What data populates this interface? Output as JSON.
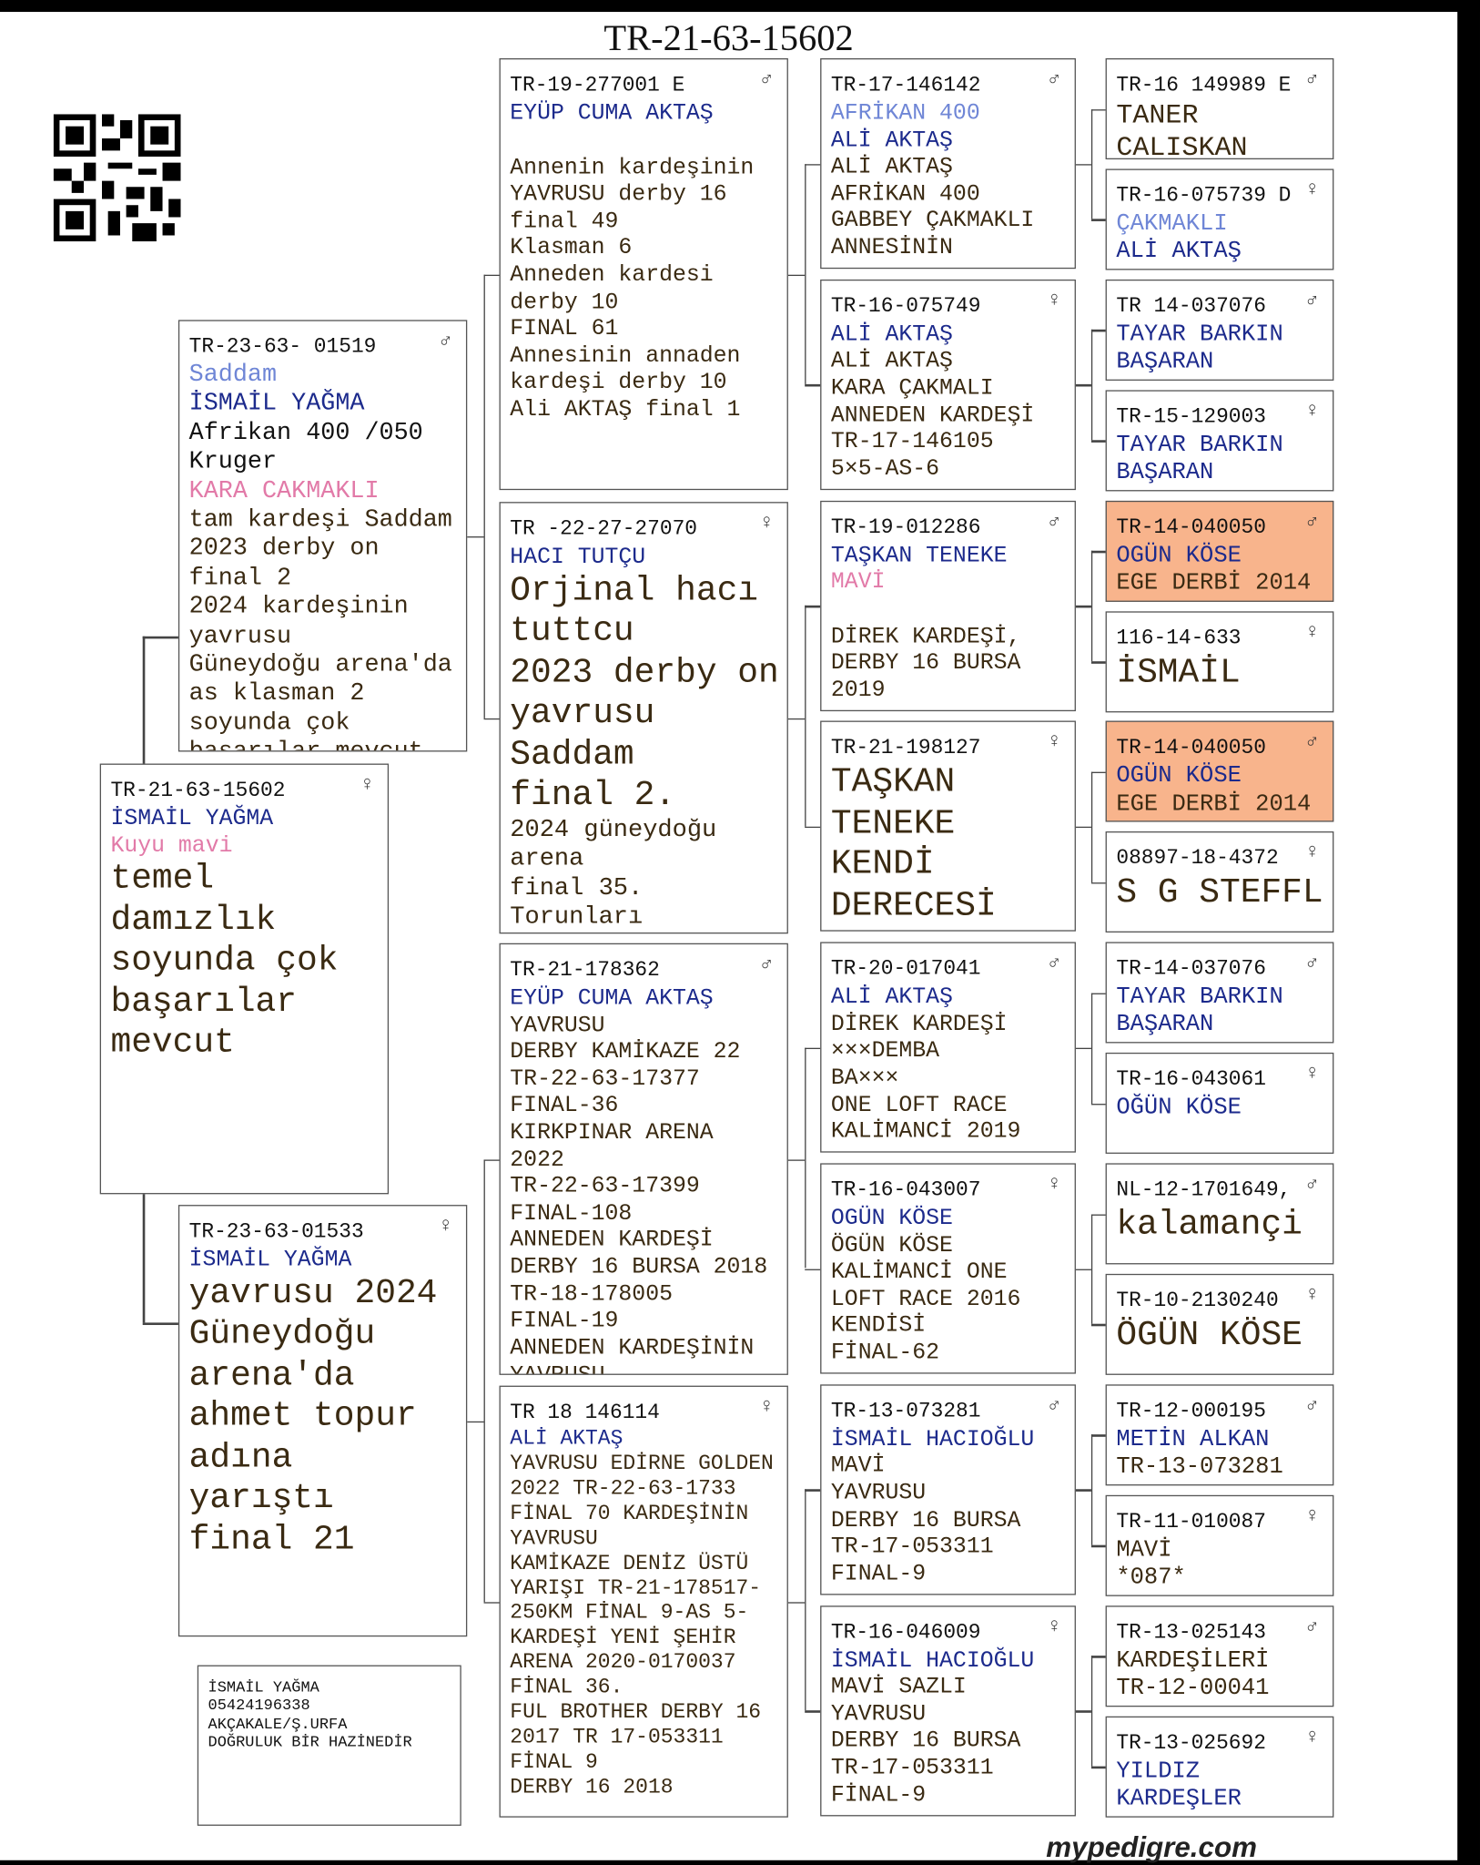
{
  "title": "TR-21-63-15602",
  "subject": {
    "ring": "TR-21-63-15602",
    "sex": "♀",
    "lines": [
      "İSMAİL YAĞMA",
      "Kuyu mavi",
      "temel",
      "damızlık",
      "soyunda çok",
      "başarılar",
      "mevcut"
    ]
  },
  "sire": {
    "ring": "TR-23-63- 01519",
    "sex": "♂",
    "lines": [
      "Saddam",
      "İSMAİL YAĞMA",
      "Afrikan 400 /050",
      "Kruger",
      "KARA CAKMAKLI",
      "tam kardeşi Saddam",
      "2023 derby on",
      "final 2",
      "2024 kardeşinin",
      "yavrusu",
      "Güneydoğu arena'da",
      "as klasman 2",
      "soyunda çok",
      "başarılar mevcut"
    ]
  },
  "dam": {
    "ring": "TR-23-63-01533",
    "sex": "♀",
    "lines": [
      "İSMAİL YAĞMA",
      "yavrusu 2024",
      "Güneydoğu",
      "arena'da",
      "ahmet topur",
      "adına",
      "yarıştı",
      "final 21"
    ]
  },
  "grandparents": [
    {
      "ring": "TR-19-277001 E",
      "sex": "♂",
      "lines": [
        "EYÜP CUMA AKTAŞ",
        "Annenin kardeşinin",
        "YAVRUSU derby 16",
        "final 49",
        "Klasman 6",
        "Anneden kardesi",
        "derby 10",
        "FINAL 61",
        "Annesinin annaden",
        "kardeşi derby 10",
        "Ali AKTAŞ final 1"
      ]
    },
    {
      "ring": "TR -22-27-27070",
      "sex": "♀",
      "lines": [
        "HACI TUTÇU",
        "Orjinal hacı",
        "tuttcu",
        "2023 derby on",
        "yavrusu",
        "Saddam",
        "final 2.",
        "2024 güneydoğu",
        "arena",
        "final 35.",
        "Torunları"
      ]
    },
    {
      "ring": "TR-21-178362",
      "sex": "♂",
      "lines": [
        "EYÜP CUMA AKTAŞ",
        "YAVRUSU",
        "DERBY KAMİKAZE 22",
        "TR-22-63-17377",
        "FINAL-36",
        "KIRKPINAR ARENA",
        "2022",
        "TR-22-63-17399",
        "FINAL-108",
        "ANNEDEN KARDEŞİ",
        "DERBY 16 BURSA 2018",
        "TR-18-178005",
        "FINAL-19",
        "ANNEDEN KARDEŞİNİN",
        "YAVRUSU"
      ]
    },
    {
      "ring": "TR 18 146114",
      "sex": "♀",
      "lines": [
        "ALİ AKTAŞ",
        "YAVRUSU EDİRNE GOLDEN",
        "2022 TR-22-63-1733",
        "FİNAL 70 KARDEŞİNİN",
        "YAVRUSU",
        "KAMİKAZE DENİZ ÜSTÜ",
        "YARIŞI TR-21-178517-",
        "250KM FİNAL 9-AS 5-",
        "KARDEŞİ YENİ ŞEHİR",
        "ARENA 2020-0170037",
        "FİNAL 36.",
        "FUL BROTHER DERBY 16",
        "2017 TR 17-053311",
        "FİNAL 9",
        "DERBY 16 2018"
      ]
    }
  ],
  "great_grandparents": [
    {
      "ring": "TR-17-146142",
      "sex": "♂",
      "lines": [
        "AFRİKAN 400",
        "ALİ AKTAŞ",
        "ALİ AKTAŞ",
        "AFRİKAN 400",
        "GABBEY ÇAKMAKLI",
        "ANNESİNİN"
      ]
    },
    {
      "ring": "TR-16-075749",
      "sex": "♀",
      "lines": [
        "ALİ AKTAŞ",
        "ALİ AKTAŞ",
        "KARA ÇAKMALI",
        "ANNEDEN KARDEŞİ",
        "TR-17-146105",
        "5×5-AS-6"
      ]
    },
    {
      "ring": "TR-19-012286",
      "sex": "♂",
      "lines": [
        "TAŞKAN TENEKE",
        "MAVİ",
        "DİREK KARDEŞİ,",
        "DERBY 16 BURSA",
        "2019"
      ]
    },
    {
      "ring": "TR-21-198127",
      "sex": "♀",
      "lines": [
        "TAŞKAN",
        "TENEKE",
        "KENDİ",
        "DERECESİ"
      ]
    },
    {
      "ring": "TR-20-017041",
      "sex": "♂",
      "lines": [
        "ALİ AKTAŞ",
        "DİREK KARDEŞİ",
        "×××DEMBA",
        "BA×××",
        "ONE LOFT RACE",
        "KALİMANCİ 2019"
      ]
    },
    {
      "ring": "TR-16-043007",
      "sex": "♀",
      "lines": [
        "OGÜN KÖSE",
        "ÖGÜN KÖSE",
        "KALİMANCİ ONE",
        "LOFT RACE 2016",
        "KENDİSİ",
        "FİNAL-62"
      ]
    },
    {
      "ring": "TR-13-073281",
      "sex": "♂",
      "lines": [
        "İSMAİL HACIOĞLU",
        "MAVİ",
        "YAVRUSU",
        "DERBY 16 BURSA",
        "TR-17-053311",
        "FINAL-9"
      ]
    },
    {
      "ring": "TR-16-046009",
      "sex": "♀",
      "lines": [
        "İSMAİL HACIOĞLU",
        "MAVİ SAZLI",
        "YAVRUSU",
        "DERBY 16 BURSA",
        "TR-17-053311",
        "FİNAL-9"
      ]
    }
  ],
  "great_great_grandparents": [
    {
      "ring": "TR-16 149989 E",
      "sex": "♂",
      "lines": [
        "TANER",
        "CALISKAN"
      ]
    },
    {
      "ring": "TR-16-075739 D",
      "sex": "♀",
      "lines": [
        "ÇAKMAKLI",
        "ALİ AKTAŞ"
      ]
    },
    {
      "ring": "TR 14-037076",
      "sex": "♂",
      "lines": [
        "TAYAR BARKIN",
        "BAŞARAN"
      ]
    },
    {
      "ring": "TR-15-129003",
      "sex": "♀",
      "lines": [
        "TAYAR BARKIN",
        "BAŞARAN"
      ]
    },
    {
      "ring": "TR-14-040050",
      "sex": "♂",
      "lines": [
        "OGÜN KÖSE",
        "EGE DERBİ 2014"
      ]
    },
    {
      "ring": "116-14-633",
      "sex": "♀",
      "lines": [
        "İSMAİL"
      ]
    },
    {
      "ring": "TR-14-040050",
      "sex": "♂",
      "lines": [
        "OGÜN KÖSE",
        "EGE DERBİ 2014"
      ]
    },
    {
      "ring": "08897-18-4372",
      "sex": "♀",
      "lines": [
        "S G STEFFL"
      ]
    },
    {
      "ring": "TR-14-037076",
      "sex": "♂",
      "lines": [
        "TAYAR BARKIN",
        "BAŞARAN"
      ]
    },
    {
      "ring": "TR-16-043061",
      "sex": "♀",
      "lines": [
        "OĞÜN KÖSE"
      ]
    },
    {
      "ring": "NL-12-1701649,",
      "sex": "♂",
      "lines": [
        "kalamançi"
      ]
    },
    {
      "ring": "TR-10-2130240",
      "sex": "♀",
      "lines": [
        "ÖGÜN KÖSE"
      ]
    },
    {
      "ring": "TR-12-000195",
      "sex": "♂",
      "lines": [
        "METİN ALKAN",
        "TR-13-073281"
      ]
    },
    {
      "ring": "TR-11-010087",
      "sex": "♀",
      "lines": [
        "MAVİ",
        "*087*"
      ]
    },
    {
      "ring": "TR-13-025143",
      "sex": "♂",
      "lines": [
        "KARDEŞİLERİ",
        "TR-12-00041"
      ]
    },
    {
      "ring": "TR-13-025692",
      "sex": "♀",
      "lines": [
        "YILDIZ",
        "KARDEŞLER"
      ]
    }
  ],
  "owner": {
    "lines": [
      "İSMAİL YAĞMA",
      "05424196338",
      "AKÇAKALE/Ş.URFA",
      "DOĞRULUK BİR HAZİNEDİR"
    ]
  },
  "footer": "mypedigre.com"
}
